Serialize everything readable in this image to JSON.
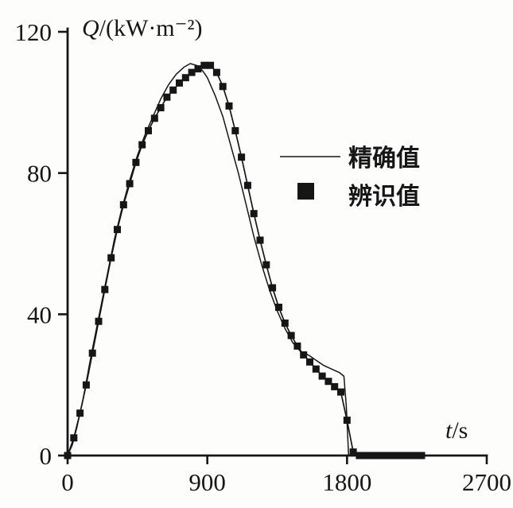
{
  "figure": {
    "paper_color": "#fdfdfb"
  },
  "chart_data": {
    "type": "line",
    "title": "",
    "ylabel": {
      "symbol": "Q",
      "rest": "/(kW·m⁻²)"
    },
    "xlabel": {
      "symbol": "t",
      "rest": "/s"
    },
    "xlim": [
      0,
      2700
    ],
    "ylim": [
      0,
      120
    ],
    "xticks": [
      0,
      900,
      1800,
      2700
    ],
    "yticks": [
      0,
      40,
      80,
      120
    ],
    "grid": false,
    "ink_color": "#161616",
    "legend_position": "center-right",
    "legend": [
      {
        "label": "精确值",
        "sample": "thin-line"
      },
      {
        "label": "辨识值",
        "sample": "filled-square"
      }
    ],
    "series": [
      {
        "name": "精确值",
        "type": "line",
        "marker": "none",
        "points": [
          [
            0,
            0
          ],
          [
            30,
            3
          ],
          [
            60,
            8
          ],
          [
            100,
            16
          ],
          [
            150,
            28
          ],
          [
            200,
            39
          ],
          [
            250,
            50
          ],
          [
            300,
            61
          ],
          [
            350,
            70
          ],
          [
            400,
            78
          ],
          [
            450,
            85
          ],
          [
            500,
            91
          ],
          [
            550,
            96
          ],
          [
            600,
            101
          ],
          [
            650,
            105
          ],
          [
            700,
            108
          ],
          [
            750,
            110
          ],
          [
            790,
            111
          ],
          [
            830,
            110.5
          ],
          [
            870,
            109
          ],
          [
            900,
            107
          ],
          [
            950,
            102
          ],
          [
            1000,
            96
          ],
          [
            1050,
            88
          ],
          [
            1100,
            80
          ],
          [
            1150,
            71
          ],
          [
            1200,
            62
          ],
          [
            1250,
            54
          ],
          [
            1300,
            47
          ],
          [
            1350,
            41
          ],
          [
            1400,
            36
          ],
          [
            1450,
            32
          ],
          [
            1500,
            29.5
          ],
          [
            1550,
            28.5
          ],
          [
            1600,
            27
          ],
          [
            1650,
            25.5
          ],
          [
            1700,
            24.5
          ],
          [
            1750,
            23.5
          ],
          [
            1780,
            22.5
          ],
          [
            1795,
            14
          ],
          [
            1810,
            0
          ]
        ]
      },
      {
        "name": "辨识值",
        "type": "line",
        "marker": "filled-square",
        "points": [
          [
            0,
            0
          ],
          [
            40,
            5
          ],
          [
            80,
            12
          ],
          [
            120,
            20
          ],
          [
            160,
            29
          ],
          [
            200,
            38
          ],
          [
            240,
            47
          ],
          [
            280,
            56
          ],
          [
            320,
            64
          ],
          [
            360,
            71
          ],
          [
            400,
            77
          ],
          [
            440,
            83
          ],
          [
            480,
            88
          ],
          [
            520,
            92
          ],
          [
            560,
            95.5
          ],
          [
            600,
            98.5
          ],
          [
            640,
            101.5
          ],
          [
            680,
            103.5
          ],
          [
            720,
            105.5
          ],
          [
            760,
            107
          ],
          [
            800,
            108.5
          ],
          [
            840,
            109.5
          ],
          [
            880,
            110.5
          ],
          [
            920,
            110.5
          ],
          [
            960,
            108.5
          ],
          [
            1000,
            104.5
          ],
          [
            1040,
            99
          ],
          [
            1080,
            92
          ],
          [
            1120,
            84.5
          ],
          [
            1160,
            76.5
          ],
          [
            1200,
            68.5
          ],
          [
            1240,
            61
          ],
          [
            1280,
            54
          ],
          [
            1320,
            47.5
          ],
          [
            1360,
            42
          ],
          [
            1400,
            37.5
          ],
          [
            1440,
            34
          ],
          [
            1480,
            31
          ],
          [
            1520,
            28.5
          ],
          [
            1560,
            26.5
          ],
          [
            1600,
            24.5
          ],
          [
            1640,
            22.5
          ],
          [
            1680,
            21
          ],
          [
            1720,
            19.5
          ],
          [
            1760,
            18
          ],
          [
            1800,
            10
          ],
          [
            1840,
            1
          ],
          [
            1880,
            0
          ],
          [
            1920,
            0
          ],
          [
            1960,
            0
          ],
          [
            2000,
            0
          ],
          [
            2040,
            0
          ],
          [
            2080,
            0
          ],
          [
            2120,
            0
          ],
          [
            2160,
            0
          ],
          [
            2200,
            0
          ],
          [
            2240,
            0
          ],
          [
            2280,
            0
          ]
        ]
      }
    ]
  }
}
